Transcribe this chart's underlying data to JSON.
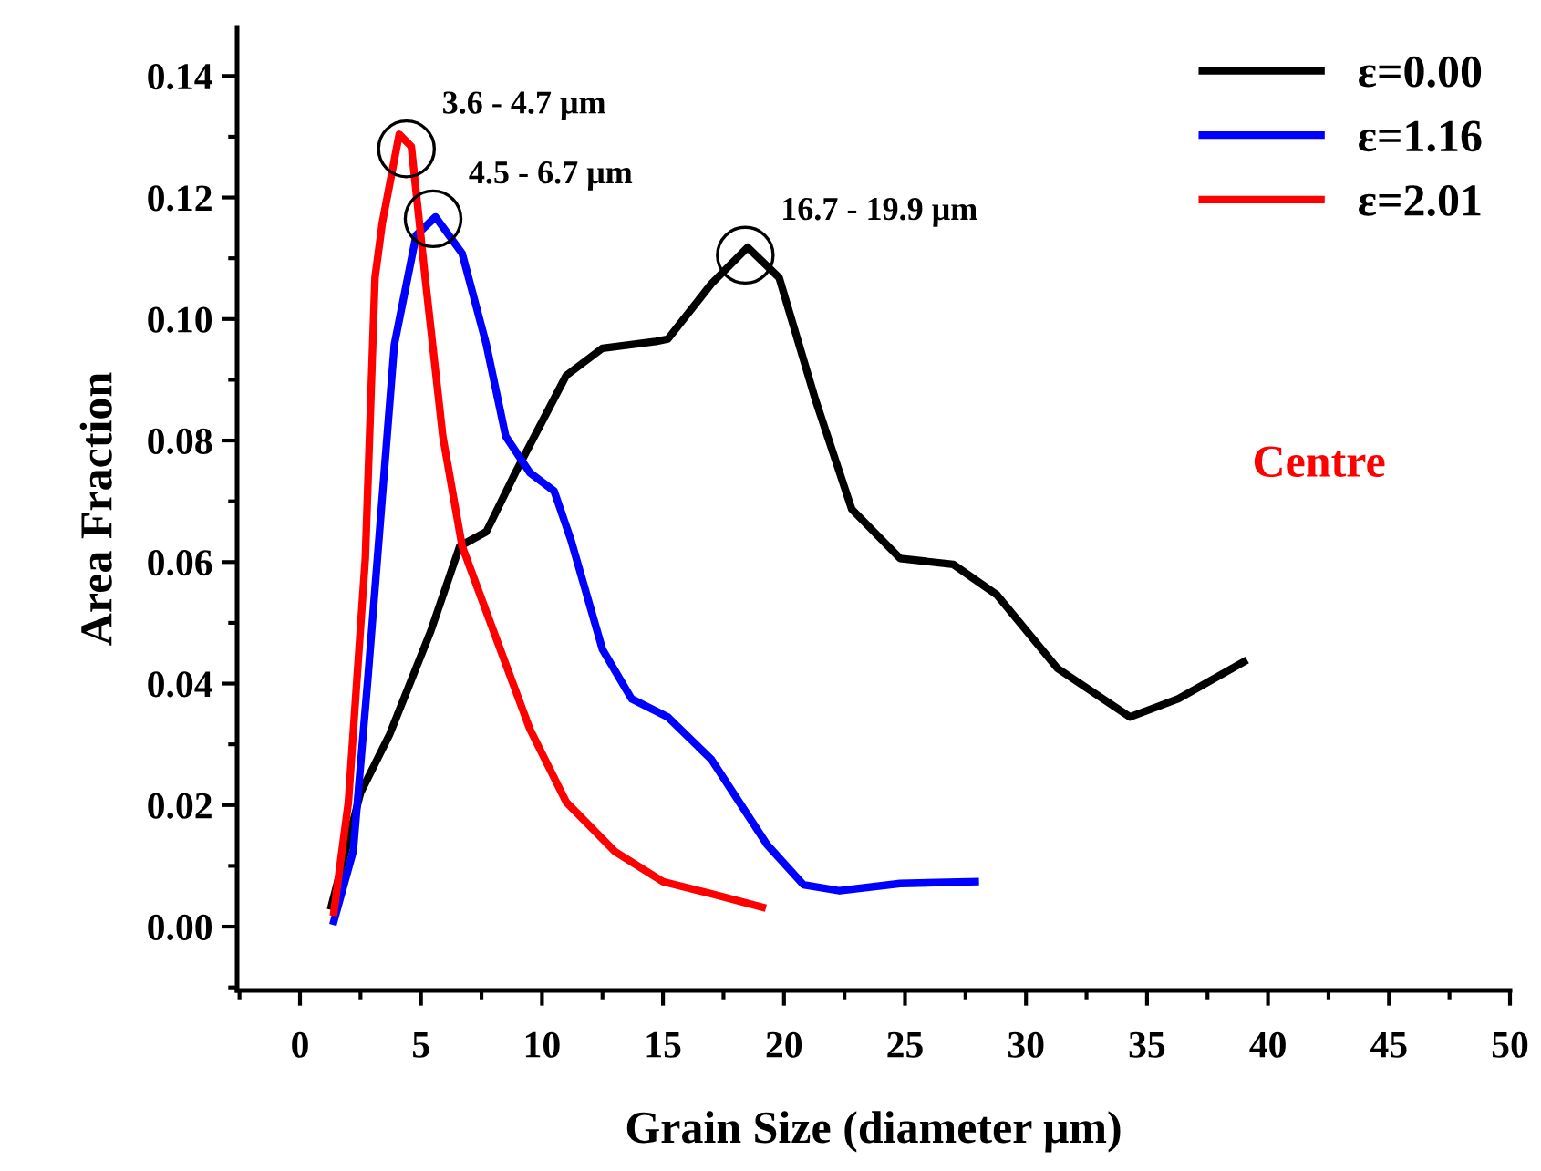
{
  "chart_data": {
    "type": "line",
    "xlabel": "Grain Size (diameter μm)",
    "ylabel": "Area Fraction",
    "xlim": [
      -2.6,
      50
    ],
    "xticks": [
      0,
      5,
      10,
      15,
      20,
      25,
      30,
      35,
      40,
      45,
      50
    ],
    "ylim": [
      -0.0105,
      0.148
    ],
    "yticks": [
      {
        "value": 0,
        "label": "0.00"
      },
      {
        "value": 0.02,
        "label": "0.02"
      },
      {
        "value": 0.04,
        "label": "0.04"
      },
      {
        "value": 0.06,
        "label": "0.06"
      },
      {
        "value": 0.08,
        "label": "0.08"
      },
      {
        "value": 0.1,
        "label": "0.10"
      },
      {
        "value": 0.12,
        "label": "0.12"
      },
      {
        "value": 0.14,
        "label": "0.14"
      }
    ],
    "grid": false,
    "legend": "top right",
    "marker": "none",
    "line_style": "solid",
    "series": [
      {
        "name": "ε=0.00",
        "color": "#000000",
        "x": [
          1.3,
          2.5,
          3.7,
          5.4,
          6.6,
          7.7,
          8.9,
          11.0,
          12.5,
          14.7,
          15.2,
          17.0,
          18.5,
          19.8,
          21.3,
          22.8,
          24.8,
          27.0,
          28.8,
          31.3,
          34.3,
          36.3,
          39.0
        ],
        "values": [
          0.0034,
          0.022,
          0.0316,
          0.0486,
          0.0626,
          0.065,
          0.0747,
          0.0907,
          0.0952,
          0.0963,
          0.0967,
          0.1058,
          0.1118,
          0.1068,
          0.0867,
          0.0687,
          0.0606,
          0.0596,
          0.0546,
          0.0425,
          0.0345,
          0.0375,
          0.0436
        ]
      },
      {
        "name": "ε=1.16",
        "color": "#0000ff",
        "x": [
          1.4,
          2.2,
          2.8,
          3.9,
          4.8,
          5.6,
          6.7,
          7.7,
          8.5,
          9.5,
          10.5,
          11.2,
          12.5,
          13.7,
          15.2,
          17.0,
          19.3,
          20.8,
          22.3,
          24.8,
          27.9
        ],
        "values": [
          0.0009,
          0.0124,
          0.0406,
          0.0958,
          0.1138,
          0.1168,
          0.1108,
          0.0958,
          0.0807,
          0.0747,
          0.0717,
          0.0636,
          0.0456,
          0.0375,
          0.0345,
          0.0275,
          0.0135,
          0.0069,
          0.0059,
          0.0071,
          0.0074
        ]
      },
      {
        "name": "ε=2.01",
        "color": "#ff0000",
        "x": [
          1.4,
          2.0,
          2.7,
          3.1,
          3.4,
          4.1,
          4.6,
          5.2,
          5.9,
          6.7,
          8.0,
          9.5,
          11.0,
          13.0,
          15.0,
          17.0,
          19.1
        ],
        "values": [
          0.0024,
          0.0205,
          0.0606,
          0.1068,
          0.1158,
          0.1304,
          0.1284,
          0.1058,
          0.0807,
          0.0626,
          0.0486,
          0.0325,
          0.0205,
          0.0124,
          0.0074,
          0.0054,
          0.0032
        ]
      }
    ],
    "annotations": [
      {
        "text": "3.6 - 4.7 μm",
        "x": 4.4,
        "y": 0.128
      },
      {
        "text": "4.5 - 6.7 μm",
        "x": 5.5,
        "y": 0.1165
      },
      {
        "text": "16.7 - 19.9 μm",
        "x": 18.4,
        "y": 0.1105
      },
      "Centre"
    ]
  }
}
